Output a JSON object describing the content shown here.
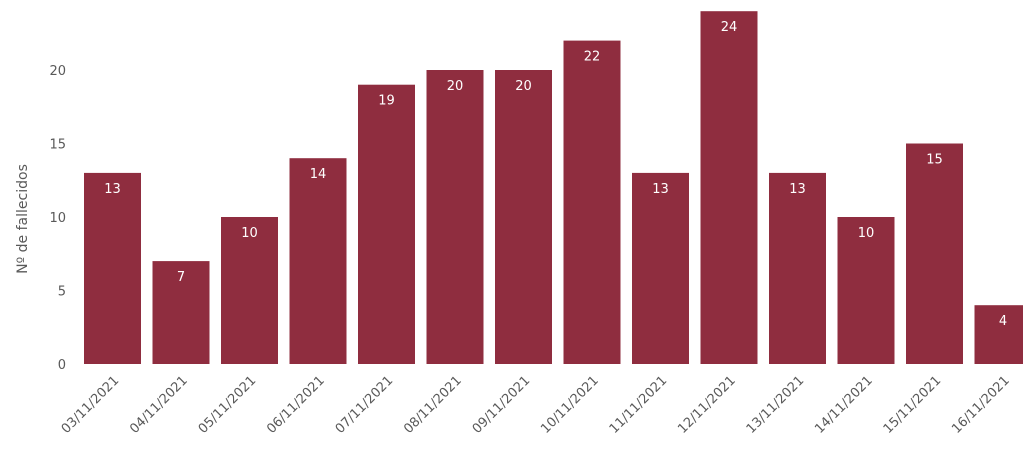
{
  "chart_data": {
    "type": "bar",
    "title": "",
    "xlabel": "",
    "ylabel": "Nº de fallecidos",
    "categories": [
      "03/11/2021",
      "04/11/2021",
      "05/11/2021",
      "06/11/2021",
      "07/11/2021",
      "08/11/2021",
      "09/11/2021",
      "10/11/2021",
      "11/11/2021",
      "12/11/2021",
      "13/11/2021",
      "14/11/2021",
      "15/11/2021",
      "16/11/2021"
    ],
    "values": [
      13,
      7,
      10,
      14,
      19,
      20,
      20,
      22,
      13,
      24,
      13,
      10,
      15,
      4
    ],
    "ylim": [
      0,
      24
    ],
    "yticks": [
      0,
      5,
      10,
      15,
      20
    ],
    "grid": false,
    "legend": "none",
    "bar_color": "#8f2d3f",
    "label_color": "#ffffff",
    "text_color": "#595959"
  }
}
